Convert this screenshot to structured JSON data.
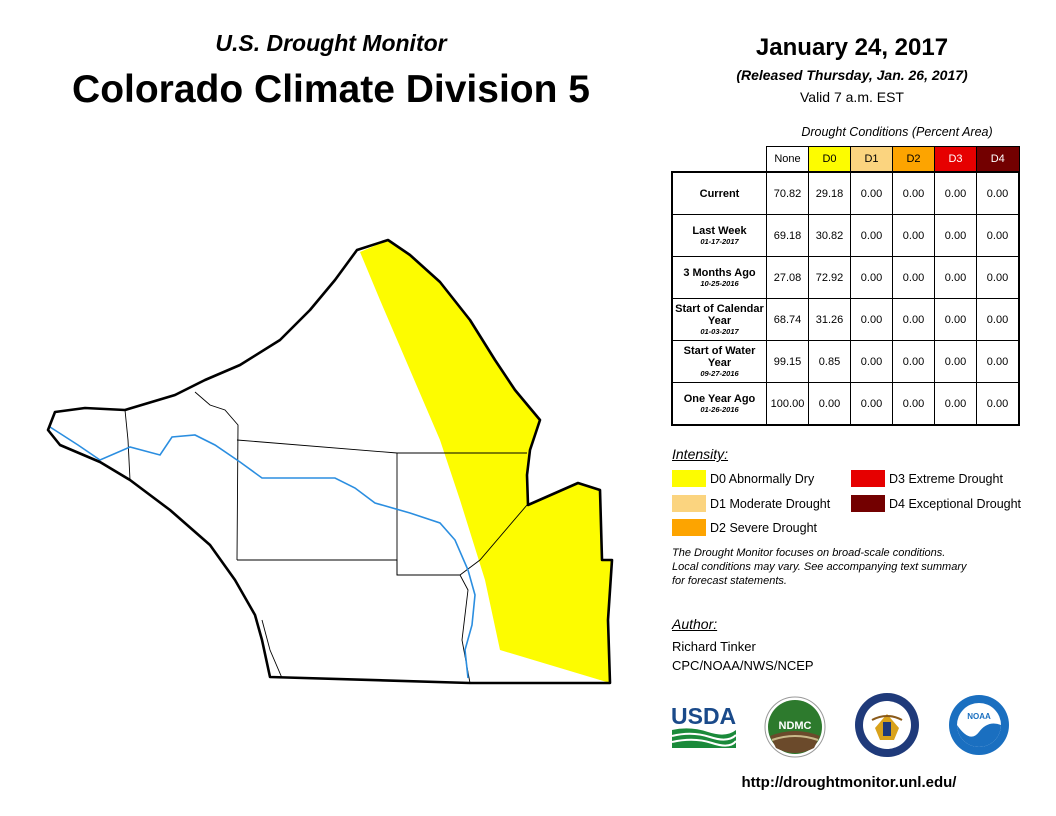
{
  "header": {
    "subtitle": "U.S. Drought Monitor",
    "title": "Colorado Climate Division 5",
    "date": "January 24, 2017",
    "released": "(Released Thursday, Jan. 26, 2017)",
    "valid": "Valid 7 a.m. EST"
  },
  "table": {
    "caption": "Drought Conditions (Percent Area)",
    "columns": [
      "None",
      "D0",
      "D1",
      "D2",
      "D3",
      "D4"
    ],
    "rows": [
      {
        "label": "Current",
        "date": "",
        "values": [
          "70.82",
          "29.18",
          "0.00",
          "0.00",
          "0.00",
          "0.00"
        ]
      },
      {
        "label": "Last Week",
        "date": "01-17-2017",
        "values": [
          "69.18",
          "30.82",
          "0.00",
          "0.00",
          "0.00",
          "0.00"
        ]
      },
      {
        "label": "3 Months Ago",
        "date": "10-25-2016",
        "values": [
          "27.08",
          "72.92",
          "0.00",
          "0.00",
          "0.00",
          "0.00"
        ]
      },
      {
        "label": "Start of Calendar Year",
        "date": "01-03-2017",
        "values": [
          "68.74",
          "31.26",
          "0.00",
          "0.00",
          "0.00",
          "0.00"
        ]
      },
      {
        "label": "Start of Water Year",
        "date": "09-27-2016",
        "values": [
          "99.15",
          "0.85",
          "0.00",
          "0.00",
          "0.00",
          "0.00"
        ]
      },
      {
        "label": "One Year Ago",
        "date": "01-26-2016",
        "values": [
          "100.00",
          "0.00",
          "0.00",
          "0.00",
          "0.00",
          "0.00"
        ]
      }
    ]
  },
  "legend": {
    "title": "Intensity:",
    "items": [
      {
        "label": "D0 Abnormally Dry",
        "color": "#fdfc00"
      },
      {
        "label": "D1 Moderate Drought",
        "color": "#fbd47f"
      },
      {
        "label": "D2 Severe Drought",
        "color": "#fda400"
      },
      {
        "label": "D3 Extreme Drought",
        "color": "#e60000"
      },
      {
        "label": "D4 Exceptional Drought",
        "color": "#730000"
      }
    ]
  },
  "note": {
    "line1": "The Drought Monitor focuses on broad-scale conditions.",
    "line2": "Local conditions may vary. See accompanying text summary",
    "line3": "for forecast statements."
  },
  "author": {
    "label": "Author:",
    "name": "Richard Tinker",
    "org": "CPC/NOAA/NWS/NCEP"
  },
  "logos": {
    "usda": "USDA",
    "ndmc": "NDMC",
    "noaa": "NOAA"
  },
  "url": "http://droughtmonitor.unl.edu/"
}
